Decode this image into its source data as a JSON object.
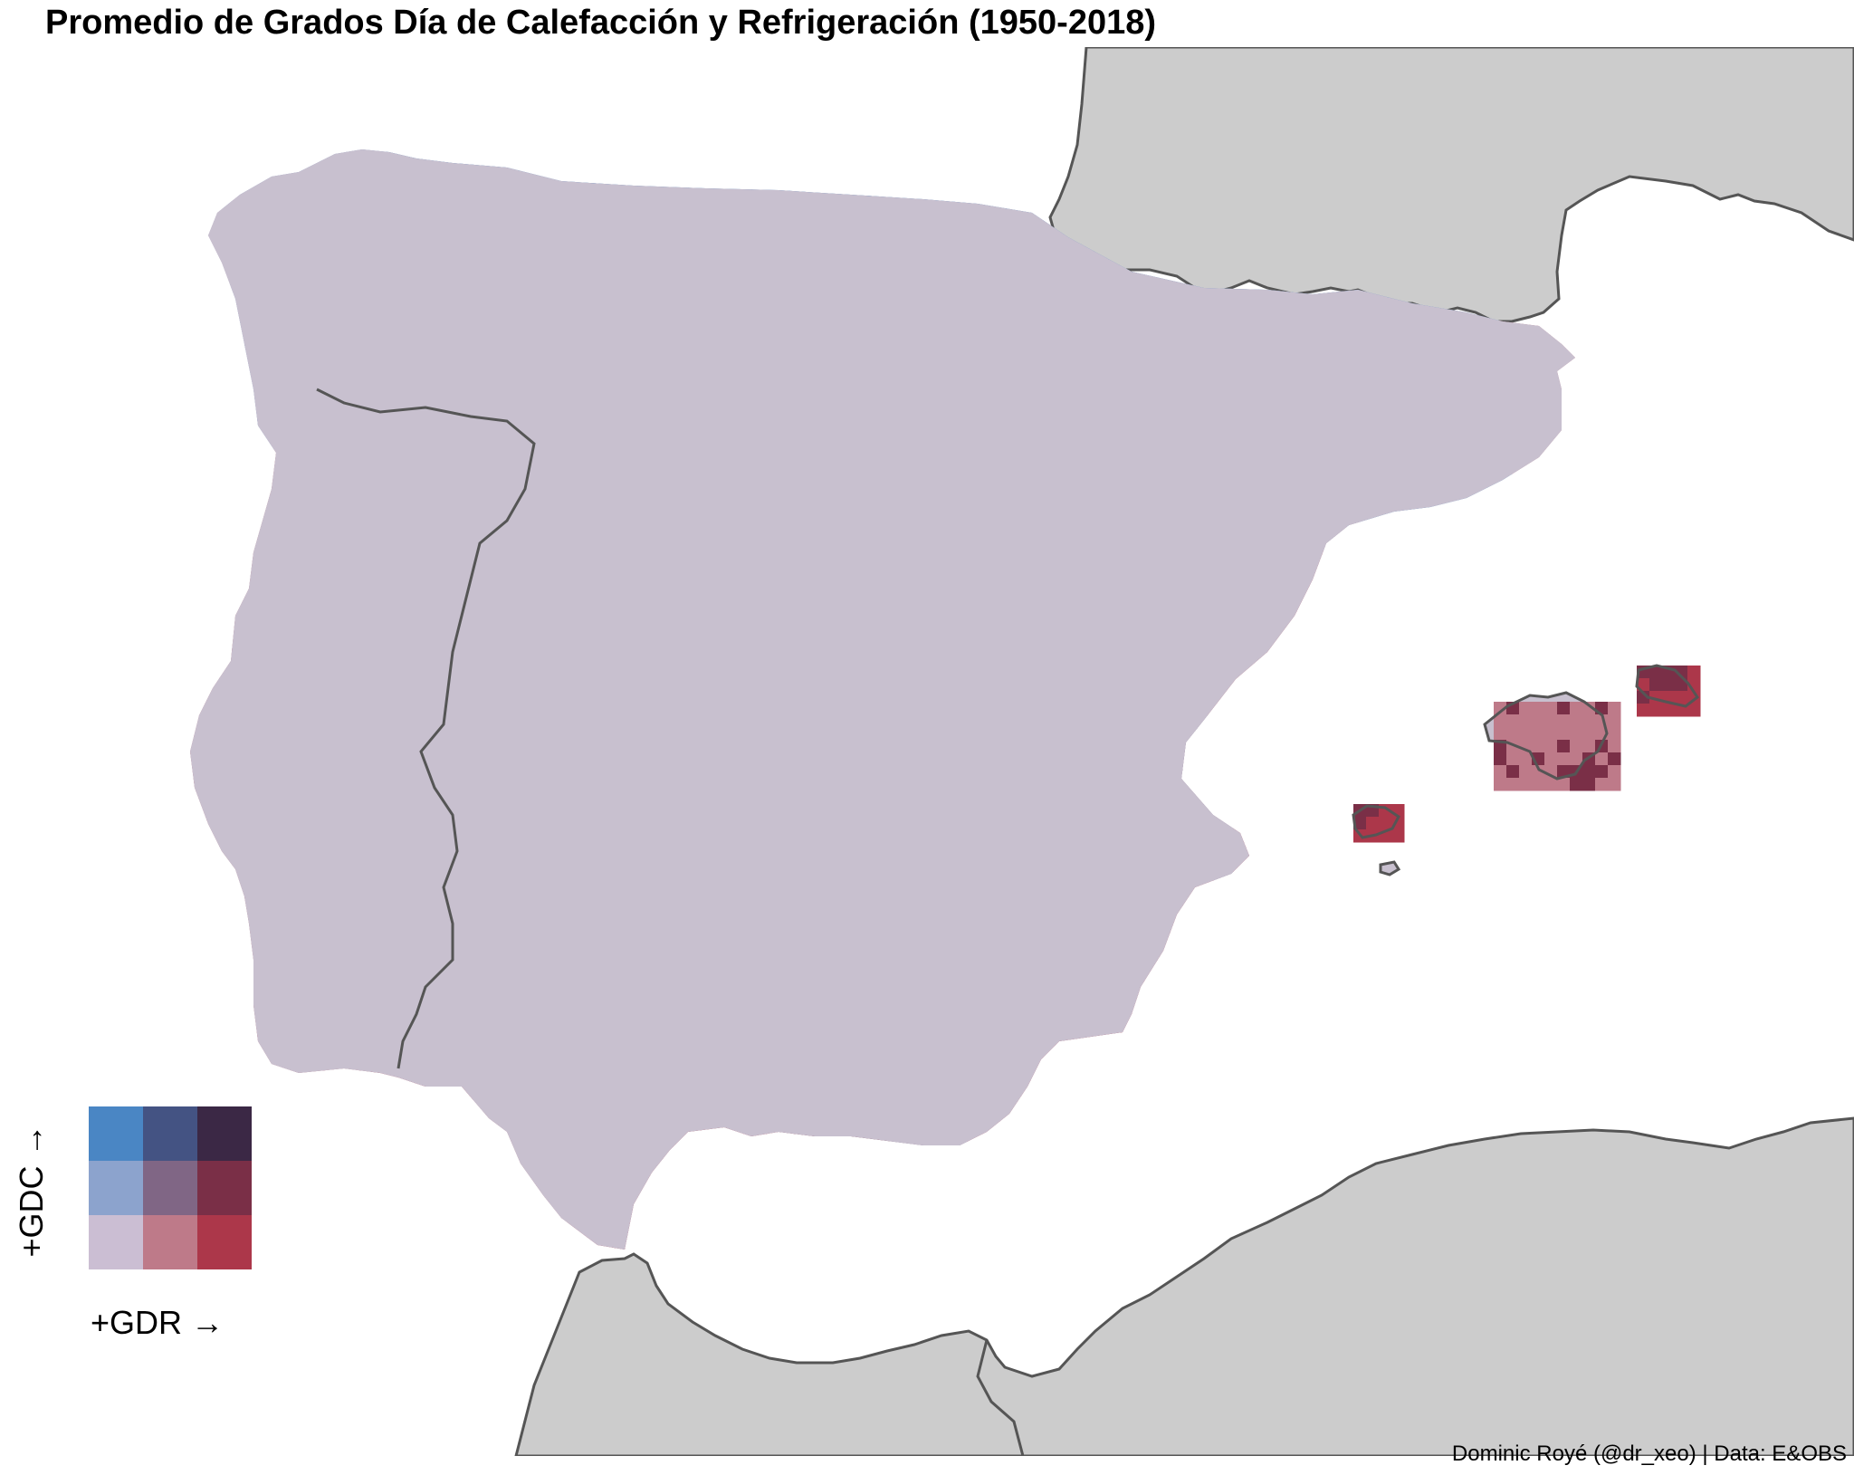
{
  "title": "Promedio de Grados Día de Calefacción y Refrigeración (1950-2018)",
  "caption": "Dominic Royé (@dr_xeo) | Data: E&OBS",
  "legend": {
    "y_label": "+GDC →",
    "x_label": "+GDR →",
    "grid": [
      [
        "#4A86C4",
        "#445383",
        "#3B2845"
      ],
      [
        "#8CA3CD",
        "#806685",
        "#7A2F47"
      ],
      [
        "#CBBED3",
        "#BE7A89",
        "#AC374A"
      ]
    ]
  },
  "colors": {
    "land": "#cccccc",
    "sea": "#ffffff",
    "border": "#555555"
  }
}
